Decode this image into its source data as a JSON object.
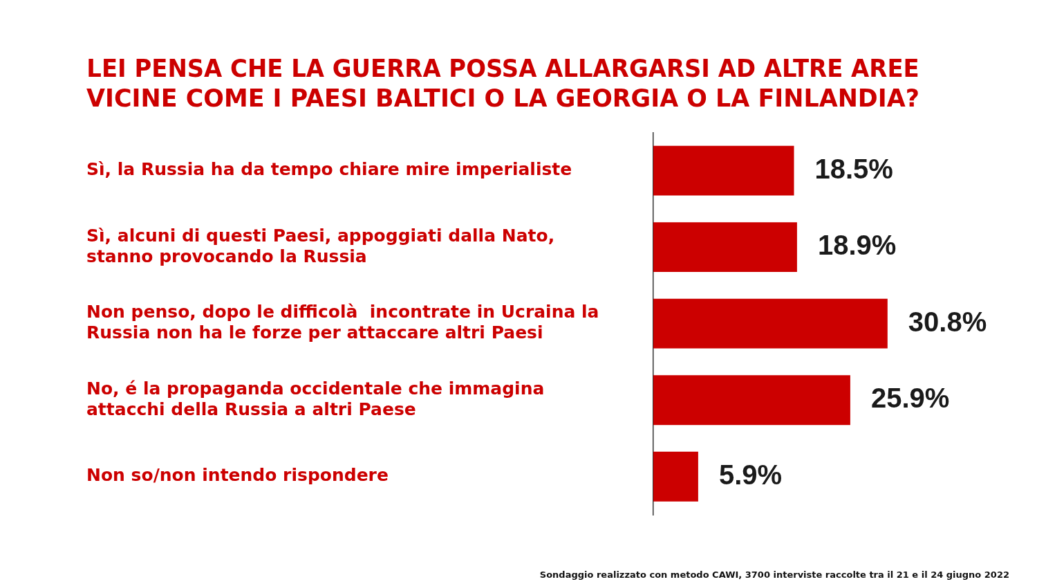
{
  "chart_data": {
    "type": "bar",
    "orientation": "horizontal",
    "title": "LEI PENSA CHE LA GUERRA POSSA ALLARGARSI AD ALTRE AREE VICINE COME I PAESI BALTICI O LA GEORGIA O LA FINLANDIA?",
    "categories": [
      "Sì, la Russia ha da tempo chiare mire imperialiste",
      "Sì, alcuni di questi Paesi, appoggiati dalla Nato, stanno provocando la Russia",
      "Non penso, dopo le difficolà  incontrate in Ucraina la Russia non ha le forze per attaccare altri Paesi",
      "No, é la propaganda occidentale che immagina attacchi della Russia a altri Paese",
      "Non so/non intendo rispondere"
    ],
    "values": [
      18.5,
      18.9,
      30.8,
      25.9,
      5.9
    ],
    "value_labels": [
      "18.5%",
      "18.9%",
      "30.8%",
      "25.9%",
      "5.9%"
    ],
    "color": "#cc0000",
    "annotations": [
      "Sondaggio realizzato con metodo CAWI, 3700 interviste raccolte tra il 21 e il 24 giugno 2022"
    ],
    "legend": false
  }
}
